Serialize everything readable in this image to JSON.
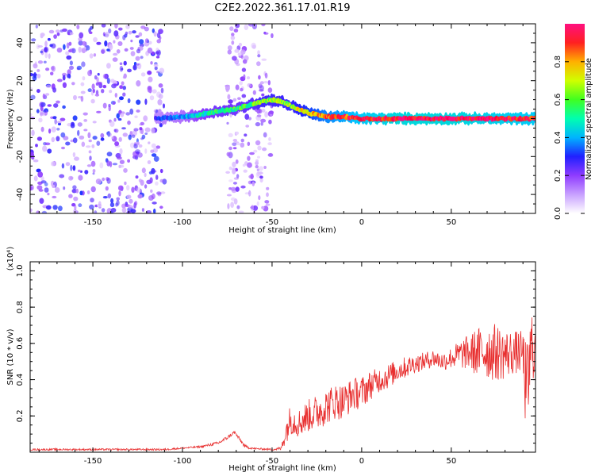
{
  "title": "C2E2.2022.361.17.01.R19",
  "chart_data": [
    {
      "type": "heatmap",
      "xlabel": "Height of straight line (km)",
      "ylabel": "Frequency (Hz)",
      "xlim": [
        -185,
        97
      ],
      "ylim": [
        -50,
        50
      ],
      "xticks": [
        -150,
        -100,
        -50,
        0,
        50
      ],
      "yticks": [
        -40,
        -20,
        0,
        20,
        40
      ],
      "colorbar": {
        "label": "Normalized spectral amplitude",
        "range": [
          0.0,
          1.0
        ],
        "ticks": [
          0.0,
          0.2,
          0.4,
          0.6,
          0.8
        ],
        "tick_labels": [
          "0.0",
          "0.2",
          "0.4",
          "0.6",
          "0.8"
        ],
        "colormap": [
          "#ffffff",
          "#d9b8ff",
          "#8f3cff",
          "#2020ff",
          "#00c8ff",
          "#00ff80",
          "#a0ff00",
          "#ffe000",
          "#ff6000",
          "#ff0040",
          "#ff1080"
        ]
      },
      "ridge": {
        "x": [
          -115,
          -100,
          -90,
          -80,
          -70,
          -60,
          -55,
          -50,
          -45,
          -40,
          -35,
          -30,
          -25,
          -20,
          -10,
          0,
          20,
          50,
          97
        ],
        "y": [
          0,
          1,
          2,
          4,
          5,
          8,
          9,
          10,
          9,
          7,
          5,
          3,
          2,
          1,
          1,
          0,
          0,
          0,
          0
        ],
        "amplitude": [
          0.3,
          0.35,
          0.45,
          0.5,
          0.5,
          0.55,
          0.6,
          0.6,
          0.6,
          0.6,
          0.65,
          0.7,
          0.75,
          0.8,
          0.85,
          0.9,
          0.95,
          0.95,
          0.9
        ]
      },
      "noise_regions": [
        {
          "x": [
            -185,
            -110
          ],
          "amplitude": 0.2
        },
        {
          "x": [
            -75,
            -50
          ],
          "amplitude": 0.15
        }
      ]
    },
    {
      "type": "line",
      "xlabel": "Height of straight line (km)",
      "ylabel": "SNR (10 * v/v)",
      "y_multiplier": "(x10⁴)",
      "xlim": [
        -185,
        97
      ],
      "ylim": [
        0,
        1.05
      ],
      "xticks": [
        -150,
        -100,
        -50,
        0,
        50
      ],
      "yticks": [
        0.2,
        0.4,
        0.6,
        0.8,
        1.0
      ],
      "ytick_labels": [
        "0.2",
        "0.4",
        "0.6",
        "0.8",
        "1.0"
      ],
      "series": [
        {
          "color": "#e83030",
          "x": [
            -185,
            -150,
            -110,
            -90,
            -80,
            -75,
            -71,
            -68,
            -65,
            -60,
            -50,
            -45,
            -42,
            -40,
            -35,
            -30,
            -25,
            -20,
            -15,
            -10,
            -5,
            0,
            5,
            10,
            15,
            20,
            25,
            30,
            35,
            40,
            45,
            50,
            55,
            60,
            65,
            70,
            75,
            80,
            85,
            90,
            92,
            95,
            97
          ],
          "y": [
            0.015,
            0.015,
            0.015,
            0.03,
            0.05,
            0.08,
            0.11,
            0.07,
            0.03,
            0.02,
            0.015,
            0.02,
            0.12,
            0.18,
            0.16,
            0.2,
            0.22,
            0.25,
            0.28,
            0.28,
            0.32,
            0.33,
            0.37,
            0.4,
            0.42,
            0.45,
            0.47,
            0.49,
            0.5,
            0.52,
            0.5,
            0.52,
            0.54,
            0.55,
            0.55,
            0.56,
            0.55,
            0.54,
            0.55,
            0.55,
            0.3,
            0.6,
            0.55
          ],
          "noise_envelope": [
            0.005,
            0.005,
            0.005,
            0.005,
            0.01,
            0.01,
            0.01,
            0.01,
            0.01,
            0.005,
            0.005,
            0.01,
            0.07,
            0.08,
            0.08,
            0.09,
            0.1,
            0.1,
            0.1,
            0.1,
            0.09,
            0.09,
            0.08,
            0.07,
            0.07,
            0.06,
            0.06,
            0.05,
            0.05,
            0.05,
            0.05,
            0.06,
            0.08,
            0.1,
            0.14,
            0.16,
            0.16,
            0.14,
            0.12,
            0.12,
            0.3,
            0.2,
            0.15
          ]
        }
      ]
    }
  ]
}
